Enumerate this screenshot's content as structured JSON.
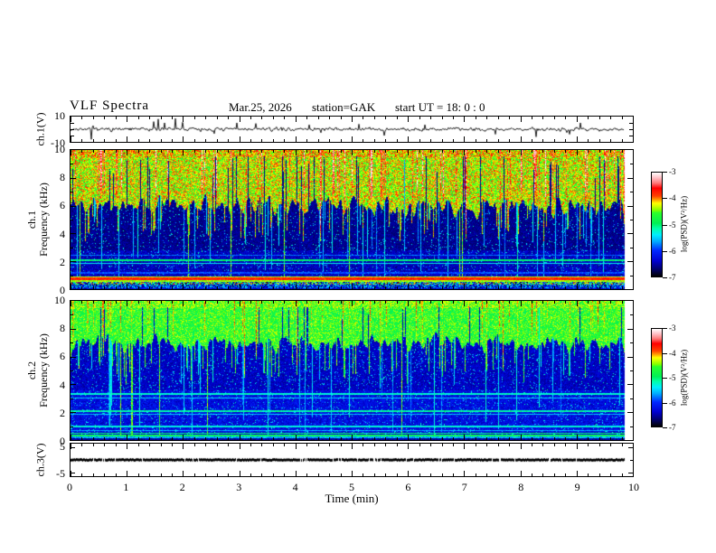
{
  "header": {
    "title": "VLF Spectra",
    "date": "Mar.25, 2026",
    "station": "station=GAK",
    "start_ut": "start UT =  18: 0  : 0"
  },
  "x_axis": {
    "label": "Time  (min)",
    "tick_labels": [
      "0",
      "1",
      "2",
      "3",
      "4",
      "5",
      "6",
      "7",
      "8",
      "9",
      "10"
    ]
  },
  "panels": {
    "ch1_wave": {
      "ylabel": "ch.1(V)",
      "tick_labels": [
        "10",
        "-10"
      ],
      "tick_values": [
        10,
        -10
      ]
    },
    "ch1_spec": {
      "ylabel_channel": "ch.1",
      "ylabel_axis": "Frequency  (kHz)",
      "tick_labels": [
        "10",
        "8",
        "6",
        "4",
        "2",
        "0"
      ]
    },
    "ch2_spec": {
      "ylabel_channel": "ch.2",
      "ylabel_axis": "Frequency  (kHz)",
      "tick_labels": [
        "10",
        "8",
        "6",
        "4",
        "2",
        "0"
      ]
    },
    "ch3_wave": {
      "ylabel": "ch.3(V)",
      "tick_labels": [
        "5",
        "-5"
      ],
      "tick_values": [
        5,
        -5
      ]
    }
  },
  "colorbars": [
    {
      "label": "log(PSD)(V²/Hz)",
      "tick_labels": [
        "-3",
        "-4",
        "-5",
        "-6",
        "-7"
      ]
    },
    {
      "label": "log(PSD)(V²/Hz)",
      "tick_labels": [
        "-3",
        "-4",
        "-5",
        "-6",
        "-7"
      ]
    }
  ],
  "chart_data": {
    "type": "multi-panel",
    "title": "VLF Spectra",
    "date": "Mar.25, 2026",
    "station": "GAK",
    "start_ut": "18:0:0",
    "time_axis": {
      "label": "Time (min)",
      "range_min": [
        0,
        10
      ],
      "data_extent_min": [
        0,
        9.87
      ]
    },
    "data_fraction": 0.985,
    "colorbar": {
      "label": "log(PSD)(V²/Hz)",
      "range_log10_psd": [
        -7,
        -3
      ],
      "tick_values": [
        -3,
        -4,
        -5,
        -6,
        -7
      ]
    },
    "colormap_stops": [
      [
        -7.0,
        "#000000"
      ],
      [
        -6.75,
        "#000060"
      ],
      [
        -6.4,
        "#0000d0"
      ],
      [
        -6.0,
        "#0028ff"
      ],
      [
        -5.65,
        "#00aaff"
      ],
      [
        -5.4,
        "#00eeff"
      ],
      [
        -5.15,
        "#00ffaa"
      ],
      [
        -4.95,
        "#00f055"
      ],
      [
        -4.55,
        "#2bff2b"
      ],
      [
        -4.45,
        "#80ff00"
      ],
      [
        -4.3,
        "#ccff00"
      ],
      [
        -4.18,
        "#ffff00"
      ],
      [
        -4.05,
        "#ffa000"
      ],
      [
        -3.9,
        "#ff4000"
      ],
      [
        -3.6,
        "#ff0000"
      ],
      [
        -3.4,
        "#ff7a7a"
      ],
      [
        -3.2,
        "#ffc0c6"
      ],
      [
        -3.0,
        "#ffffff"
      ]
    ],
    "panels": [
      {
        "id": "ch1_waveform",
        "type": "line",
        "ylabel": "ch.1(V)",
        "ylim": [
          -10,
          10
        ],
        "baseline_v": 0,
        "noise_std_v": 1,
        "seed": 7,
        "description": "broadband noisy voltage trace around 0 V with impulsive spikes",
        "spikes": [
          {
            "t": 0.37,
            "a": -8
          },
          {
            "t": 1.5,
            "a": 6
          },
          {
            "t": 1.58,
            "a": 8
          },
          {
            "t": 1.69,
            "a": 5
          },
          {
            "t": 1.9,
            "a": 8.5
          },
          {
            "t": 2.03,
            "a": 5.5
          },
          {
            "t": 2.6,
            "a": -3.5
          },
          {
            "t": 3.0,
            "a": 5
          },
          {
            "t": 3.35,
            "a": 4.5
          },
          {
            "t": 4.3,
            "a": 3.5
          },
          {
            "t": 5.2,
            "a": 4
          },
          {
            "t": 5.66,
            "a": -5
          },
          {
            "t": 6.4,
            "a": 3.5
          },
          {
            "t": 7.66,
            "a": -4
          },
          {
            "t": 8.4,
            "a": -6
          },
          {
            "t": 9.0,
            "a": -4
          },
          {
            "t": 9.2,
            "a": 5
          }
        ]
      },
      {
        "id": "ch1_spectrogram",
        "type": "heatmap",
        "ylabel": "ch.1 Frequency (kHz)",
        "freq_range_khz": [
          0,
          10
        ],
        "psd_range_log": [
          -7,
          -3
        ],
        "seed": 11,
        "fmax": 10,
        "description": "intense green/yellow with red streaks above ~6 kHz, dark navy below with cyan speckle, bright orange band near 0.8 kHz",
        "render": {
          "boundary": {
            "base": 6.1,
            "amp": 1.4,
            "dark_spike_prob": 0.05,
            "dip_prob": 0.1
          },
          "top": {
            "level": -4.3,
            "jitter": 0.5,
            "streak_prob": 0.12,
            "streak_boost": 1.1
          },
          "dark": {
            "level": -6.75,
            "jitter": 0.3,
            "busy_below": 2.8,
            "speckle_prob": 0.05,
            "streak_prob": 0.1
          },
          "pierce_prob": 0.012,
          "h_lines": [
            {
              "khz": 2.45,
              "w": 0.04,
              "level": -5.8
            },
            {
              "khz": 2.12,
              "w": 0.05,
              "level": -5.0
            },
            {
              "khz": 1.9,
              "w": 0.04,
              "level": -5.35
            },
            {
              "khz": 1.2,
              "w": 0.04,
              "level": -5.9
            }
          ],
          "bottom_bands": [
            {
              "lo": 0.86,
              "hi": 0.97,
              "level": -4.3,
              "jitter": 0.15
            },
            {
              "lo": 0.68,
              "hi": 0.86,
              "level": -3.75,
              "jitter": 0.2
            },
            {
              "lo": 0.58,
              "hi": 0.68,
              "level": -4.4,
              "jitter": 0.15
            },
            {
              "lo": 0.34,
              "hi": 0.58,
              "speckle": true,
              "min": -7,
              "max": -3.6
            },
            {
              "lo": 0.12,
              "hi": 0.34,
              "speckle": true,
              "min": -6.9,
              "max": -5.2
            },
            {
              "lo": 0.0,
              "hi": 0.12,
              "level": -6.4,
              "jitter": 0.3
            }
          ]
        }
      },
      {
        "id": "ch2_spectrogram",
        "type": "heatmap",
        "ylabel": "ch.2 Frequency (kHz)",
        "freq_range_khz": [
          0,
          10
        ],
        "psd_range_log": [
          -7,
          -3
        ],
        "seed": 23,
        "fmax": 10,
        "description": "green with yellow streaks above ~7 kHz, dark blue below with horizontal cyan lines near 1-3.4 kHz, green band near 0.3 kHz, red line at bottom",
        "render": {
          "boundary": {
            "base": 7.0,
            "amp": 1.0,
            "dark_spike_prob": 0.04,
            "dip_prob": 0.12
          },
          "top": {
            "level": -4.65,
            "jitter": 0.4,
            "streak_prob": 0.1,
            "streak_boost": 0.7
          },
          "dark": {
            "level": -6.6,
            "jitter": 0.35,
            "busy_below": 3.6,
            "speckle_prob": 0.06,
            "streak_prob": 0.08
          },
          "pierce_prob": 0.006,
          "h_lines": [
            {
              "khz": 3.35,
              "w": 0.05,
              "level": -5.25
            },
            {
              "khz": 3.05,
              "w": 0.04,
              "level": -5.5
            },
            {
              "khz": 2.12,
              "w": 0.05,
              "level": -5.15
            },
            {
              "khz": 1.9,
              "w": 0.04,
              "level": -5.5
            },
            {
              "khz": 1.02,
              "w": 0.05,
              "level": -5.3
            },
            {
              "khz": 0.72,
              "w": 0.04,
              "level": -5.6
            }
          ],
          "bottom_bands": [
            {
              "lo": 0.5,
              "hi": 0.58,
              "level": -5.0,
              "jitter": 0.25
            },
            {
              "lo": 0.26,
              "hi": 0.44,
              "level": -4.85,
              "jitter": 0.25
            },
            {
              "lo": 0.14,
              "hi": 0.26,
              "level": -5.6,
              "jitter": 0.3
            },
            {
              "lo": 0.05,
              "hi": 0.14,
              "level": -6.6,
              "jitter": 0.2
            },
            {
              "lo": 0.0,
              "hi": 0.05,
              "level": -3.6,
              "jitter": 0.1
            }
          ]
        }
      },
      {
        "id": "ch3_waveform",
        "type": "line",
        "ylabel": "ch.3(V)",
        "ylim": [
          -5,
          5
        ],
        "constant_v": 0,
        "seed": 5,
        "description": "flat thick black trace at 0 V for full record"
      }
    ]
  }
}
